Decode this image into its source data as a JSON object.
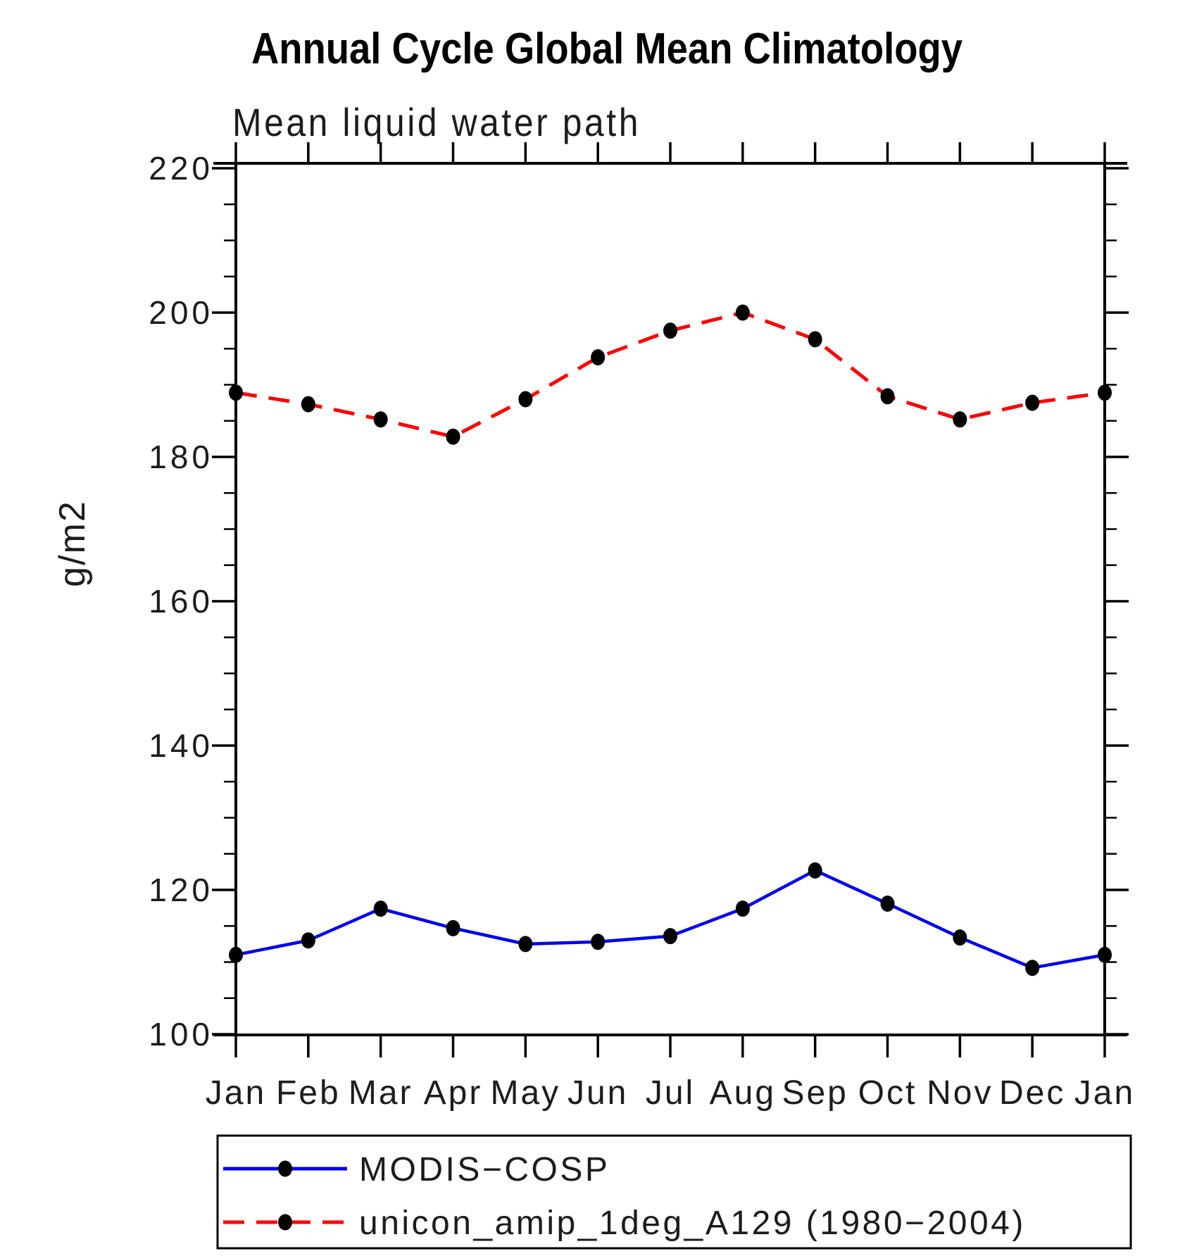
{
  "title": "Annual Cycle Global Mean Climatology",
  "subtitle": "Mean liquid water path",
  "ylabel": "g/m2",
  "colors": {
    "axis": "#000000",
    "marker": "#000000",
    "modis_line": "#0000ee",
    "unicon_line": "#ff0000",
    "text": "#1c1c1c"
  },
  "chart_data": {
    "type": "line",
    "title": "Annual Cycle Global Mean Climatology",
    "subtitle": "Mean liquid water path",
    "xlabel": "",
    "ylabel": "g/m2",
    "x_tick_labels": [
      "Jan",
      "Feb",
      "Mar",
      "Apr",
      "May",
      "Jun",
      "Jul",
      "Aug",
      "Sep",
      "Oct",
      "Nov",
      "Dec",
      "Jan"
    ],
    "ylim": [
      100,
      220
    ],
    "y_major_ticks": [
      100,
      120,
      140,
      160,
      180,
      200,
      220
    ],
    "y_major_tick_labels": [
      "100",
      "120",
      "140",
      "160",
      "180",
      "200",
      "220"
    ],
    "y_minor_step": 5,
    "grid": false,
    "legend_position": "bottom",
    "series": [
      {
        "name": "MODIS−COSP",
        "color": "#0000ee",
        "line_style": "solid",
        "marker": "filled-circle",
        "marker_color": "#000000",
        "values": [
          111.0,
          113.0,
          117.4,
          114.7,
          112.5,
          112.8,
          113.6,
          117.4,
          122.7,
          118.1,
          113.4,
          109.2,
          111.0
        ]
      },
      {
        "name": "unicon_amip_1deg_A129 (1980−2004)",
        "color": "#ff0000",
        "line_style": "dashed",
        "marker": "filled-circle",
        "marker_color": "#000000",
        "values": [
          188.9,
          187.3,
          185.2,
          182.8,
          188.0,
          193.8,
          197.5,
          200.0,
          196.3,
          188.4,
          185.2,
          187.5,
          188.9
        ]
      }
    ]
  },
  "legend": {
    "items": [
      {
        "label": "MODIS−COSP"
      },
      {
        "label": "unicon_amip_1deg_A129 (1980−2004)"
      }
    ]
  }
}
